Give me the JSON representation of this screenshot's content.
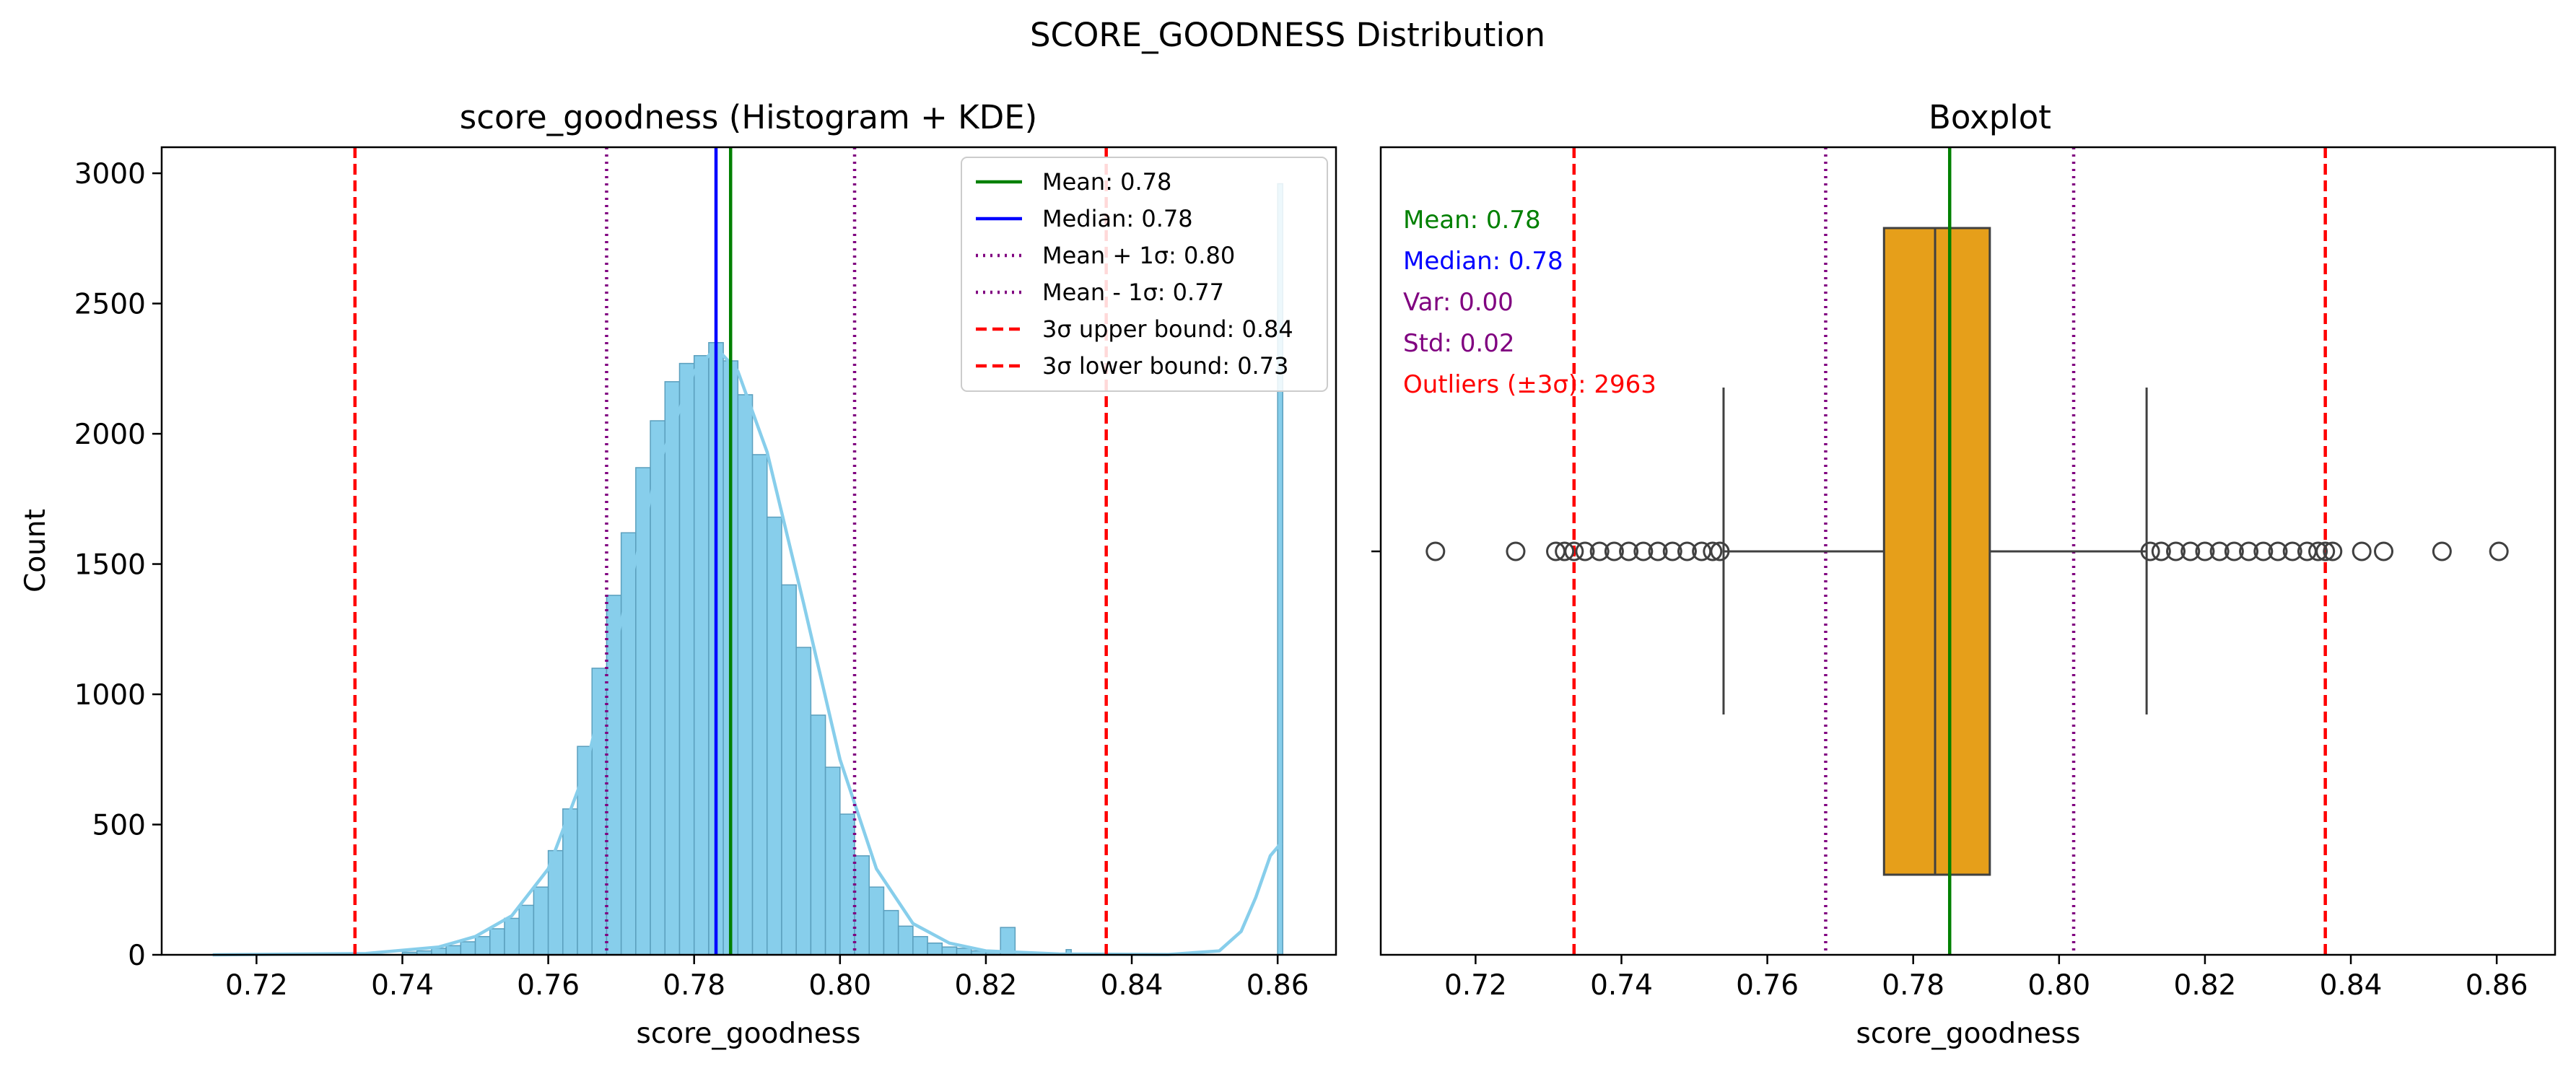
{
  "figure": {
    "suptitle": "SCORE_GOODNESS Distribution"
  },
  "colors": {
    "hist_fill": "#87CEEB",
    "hist_edge": "#5b9fbd",
    "kde": "#87CEEB",
    "mean": "#008000",
    "median": "#0000ff",
    "sigma1": "#800080",
    "sigma3": "#ff0000",
    "box": "#E69F1A",
    "box_edge": "#404040"
  },
  "chart_data": [
    {
      "type": "bar",
      "title": "score_goodness (Histogram + KDE)",
      "xlabel": "score_goodness",
      "ylabel": "Count",
      "xlim": [
        0.707,
        0.868
      ],
      "ylim": [
        0,
        3100
      ],
      "xticks": [
        "0.72",
        "0.74",
        "0.76",
        "0.78",
        "0.80",
        "0.82",
        "0.84",
        "0.86"
      ],
      "yticks": [
        "0",
        "500",
        "1000",
        "1500",
        "2000",
        "2500",
        "3000"
      ],
      "hist_bins": {
        "x": [
          0.74,
          0.742,
          0.744,
          0.746,
          0.748,
          0.75,
          0.752,
          0.754,
          0.756,
          0.758,
          0.76,
          0.762,
          0.764,
          0.766,
          0.768,
          0.77,
          0.772,
          0.774,
          0.776,
          0.778,
          0.78,
          0.782,
          0.784,
          0.786,
          0.788,
          0.79,
          0.792,
          0.794,
          0.796,
          0.798,
          0.8,
          0.802,
          0.804,
          0.806,
          0.808,
          0.81,
          0.812,
          0.814,
          0.816,
          0.818,
          0.82,
          0.822,
          0.831,
          0.86
        ],
        "values": [
          10,
          15,
          25,
          35,
          50,
          70,
          100,
          140,
          190,
          260,
          400,
          560,
          800,
          1100,
          1380,
          1620,
          1870,
          2050,
          2200,
          2270,
          2300,
          2350,
          2280,
          2150,
          1920,
          1680,
          1420,
          1180,
          920,
          720,
          540,
          380,
          260,
          170,
          110,
          70,
          45,
          30,
          25,
          15,
          10,
          105,
          20,
          2960
        ]
      },
      "kde": {
        "x": [
          0.714,
          0.735,
          0.745,
          0.75,
          0.755,
          0.76,
          0.765,
          0.77,
          0.775,
          0.78,
          0.783,
          0.786,
          0.79,
          0.795,
          0.8,
          0.805,
          0.81,
          0.815,
          0.82,
          0.83,
          0.845,
          0.852,
          0.855,
          0.857,
          0.859,
          0.8605
        ],
        "y": [
          0,
          5,
          30,
          70,
          150,
          330,
          700,
          1280,
          1870,
          2240,
          2330,
          2240,
          1930,
          1350,
          750,
          330,
          120,
          45,
          15,
          3,
          1,
          15,
          90,
          220,
          380,
          430
        ]
      },
      "lines": {
        "mean": 0.785,
        "median": 0.783,
        "plus_1sigma": 0.802,
        "minus_1sigma": 0.768,
        "upper_3sigma": 0.8365,
        "lower_3sigma": 0.7335
      },
      "legend": {
        "placement": "upper right",
        "entries": [
          {
            "label": "Mean: 0.78",
            "style": "solid",
            "color": "#008000"
          },
          {
            "label": "Median: 0.78",
            "style": "solid",
            "color": "#0000ff"
          },
          {
            "label": "Mean + 1σ: 0.80",
            "style": "dotted",
            "color": "#800080"
          },
          {
            "label": "Mean - 1σ: 0.77",
            "style": "dotted",
            "color": "#800080"
          },
          {
            "label": "3σ upper bound: 0.84",
            "style": "dashed",
            "color": "#ff0000"
          },
          {
            "label": "3σ lower bound: 0.73",
            "style": "dashed",
            "color": "#ff0000"
          }
        ]
      }
    },
    {
      "type": "box",
      "title": "Boxplot",
      "xlabel": "score_goodness",
      "xlim": [
        0.707,
        0.868
      ],
      "xticks": [
        "0.72",
        "0.74",
        "0.76",
        "0.78",
        "0.80",
        "0.82",
        "0.84",
        "0.86"
      ],
      "box": {
        "q1": 0.776,
        "median": 0.783,
        "q3": 0.7905,
        "whisker_low": 0.754,
        "whisker_high": 0.812
      },
      "outliers": [
        0.7145,
        0.7255,
        0.731,
        0.7322,
        0.7335,
        0.735,
        0.737,
        0.739,
        0.741,
        0.743,
        0.745,
        0.747,
        0.749,
        0.751,
        0.7525,
        0.7535,
        0.8125,
        0.814,
        0.816,
        0.818,
        0.82,
        0.822,
        0.824,
        0.826,
        0.828,
        0.83,
        0.832,
        0.834,
        0.8355,
        0.8365,
        0.8375,
        0.8415,
        0.8445,
        0.8525,
        0.8603
      ],
      "lines": {
        "mean": 0.785,
        "plus_1sigma": 0.802,
        "minus_1sigma": 0.768,
        "upper_3sigma": 0.8365,
        "lower_3sigma": 0.7335
      },
      "annotations": [
        {
          "text": "Mean: 0.78",
          "color": "#008000"
        },
        {
          "text": "Median: 0.78",
          "color": "#0000ff"
        },
        {
          "text": "Var: 0.00",
          "color": "#800080"
        },
        {
          "text": "Std: 0.02",
          "color": "#800080"
        },
        {
          "text": "Outliers (±3σ): 2963",
          "color": "#ff0000"
        }
      ]
    }
  ]
}
